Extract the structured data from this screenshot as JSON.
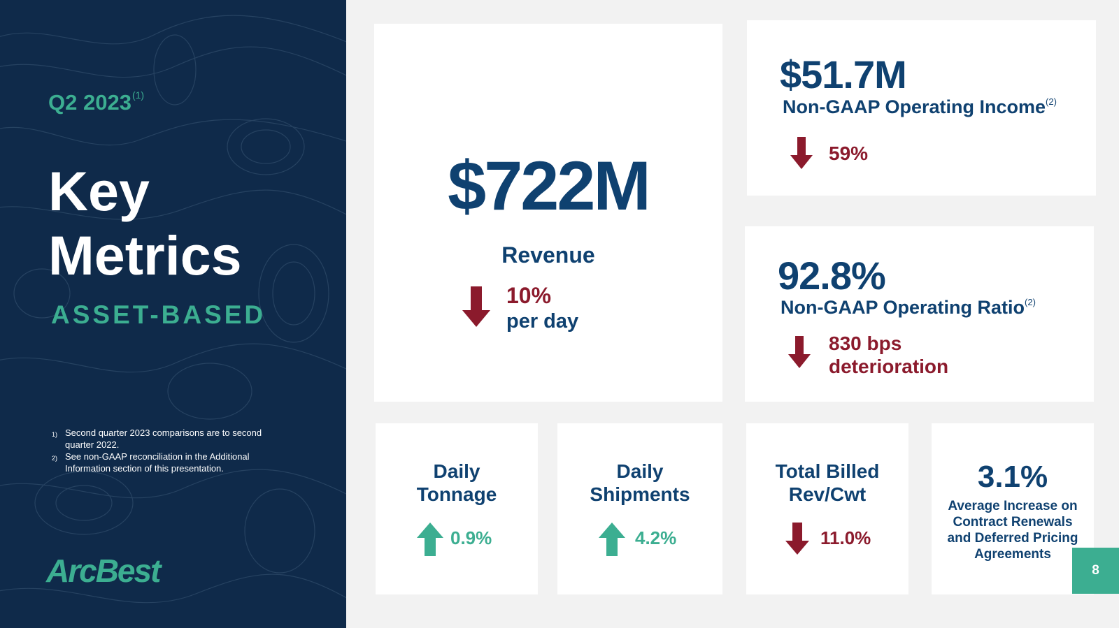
{
  "left": {
    "period": "Q2 2023",
    "period_note": "(1)",
    "title_line1": "Key",
    "title_line2": "Metrics",
    "segment": "ASSET-BASED",
    "notes": [
      {
        "num": "1)",
        "text": "Second quarter 2023 comparisons are to second quarter 2022."
      },
      {
        "num": "2)",
        "text": "See non-GAAP reconciliation in the Additional Information section of this presentation."
      }
    ],
    "logo": "ArcBest"
  },
  "revenue": {
    "value": "$722M",
    "label": "Revenue",
    "change": "10%",
    "change_unit": "per day",
    "direction": "down"
  },
  "operating_income": {
    "value": "$51.7M",
    "label": "Non-GAAP Operating Income",
    "note": "(2)",
    "change": "59%",
    "direction": "down"
  },
  "operating_ratio": {
    "value": "92.8%",
    "label": "Non-GAAP Operating Ratio",
    "note": "(2)",
    "change_line1": "830 bps",
    "change_line2": "deterioration",
    "direction": "down"
  },
  "tonnage": {
    "title_line1": "Daily",
    "title_line2": "Tonnage",
    "change": "0.9%",
    "direction": "up"
  },
  "shipments": {
    "title_line1": "Daily",
    "title_line2": "Shipments",
    "change": "4.2%",
    "direction": "up"
  },
  "billed": {
    "title_line1": "Total Billed",
    "title_line2": "Rev/Cwt",
    "change": "11.0%",
    "direction": "down"
  },
  "contract": {
    "value": "3.1%",
    "desc_line1": "Average Increase on",
    "desc_line2": "Contract Renewals",
    "desc_line3": "and Deferred Pricing",
    "desc_line4": "Agreements"
  },
  "page_number": "8",
  "colors": {
    "navy_panel": "#0f2a4a",
    "navy_text": "#0f4170",
    "green": "#3cae91",
    "red": "#8b1a2c",
    "background": "#f2f2f2"
  }
}
